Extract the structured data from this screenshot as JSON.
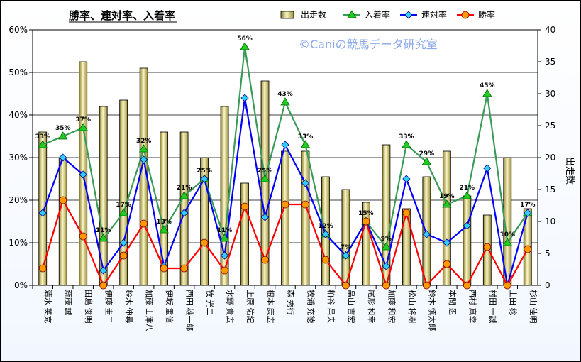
{
  "chart_data": {
    "type": "bar+line",
    "title": "勝率、連対率、入着率",
    "watermark": "©Caniの競馬データ研究室",
    "y2label": "出走数",
    "ylim": [
      0,
      60
    ],
    "y2lim": [
      0,
      40
    ],
    "y_ticks": [
      "0%",
      "10%",
      "20%",
      "30%",
      "40%",
      "50%",
      "60%"
    ],
    "y2_ticks": [
      "0",
      "5",
      "10",
      "15",
      "20",
      "25",
      "30",
      "35",
      "40"
    ],
    "grid": "major",
    "legend": "top",
    "categories": [
      "清水 英克",
      "斎藤 誠",
      "田島 俊明",
      "伊藤 圭三",
      "鈴木 伸尋",
      "加藤 士津八",
      "伊坂 重信",
      "西田 雄一郎",
      "牧 光二",
      "水野 貴広",
      "上原 佑紀",
      "根本 康広",
      "森 秀行",
      "牧浦 充徳",
      "粕谷 昌央",
      "畠山 吉宏",
      "尾形 和幸",
      "加藤 和宏",
      "松山 将樹",
      "鈴木 慎太郎",
      "本間 忍",
      "西村 真幸",
      "村田 一誠",
      "土田 稔",
      "杉山 佳明"
    ],
    "series": [
      {
        "name": "出走数",
        "kind": "bar",
        "axis": "y2",
        "color": "#d8cc6a",
        "values": [
          24,
          20,
          35,
          28,
          29,
          34,
          24,
          24,
          20,
          28,
          16,
          32,
          21,
          21,
          17,
          15,
          13,
          22,
          12,
          17,
          21,
          14,
          11,
          20,
          12
        ]
      },
      {
        "name": "入着率",
        "kind": "line",
        "marker": "triangle",
        "color": "#3a9a58",
        "marker_color": "#22cc22",
        "values": [
          33,
          35,
          37,
          11,
          17,
          32,
          13,
          21,
          25,
          11,
          56,
          25,
          43,
          33,
          12,
          7,
          15,
          9,
          33,
          29,
          19,
          21,
          45,
          10,
          17
        ],
        "labels": [
          "33%",
          "35%",
          "37%",
          "11%",
          "17%",
          "32%",
          "13%",
          "21%",
          "25%",
          "11%",
          "56%",
          "25%",
          "43%",
          "33%",
          "12%",
          "7%",
          "15%",
          "9%",
          "33%",
          "29%",
          "19%",
          "21%",
          "45%",
          "10%",
          "17%"
        ]
      },
      {
        "name": "連対率",
        "kind": "line",
        "marker": "diamond",
        "color": "#0000ff",
        "marker_color": "#33ccff",
        "values": [
          17,
          30,
          26,
          3.5,
          10,
          29.5,
          4.5,
          17,
          25,
          7,
          44,
          16,
          33,
          24,
          12,
          7,
          15,
          4.5,
          25,
          12,
          10,
          14,
          27.5,
          0,
          17
        ]
      },
      {
        "name": "勝率",
        "kind": "line",
        "marker": "circle",
        "color": "#ff0000",
        "marker_color": "#ff9900",
        "values": [
          4,
          20,
          11.5,
          0,
          7,
          14.5,
          4,
          4,
          10,
          3.5,
          18.5,
          6,
          19,
          19,
          6,
          0,
          15,
          0,
          17,
          0,
          5,
          0,
          9,
          0,
          8.5
        ]
      }
    ]
  }
}
